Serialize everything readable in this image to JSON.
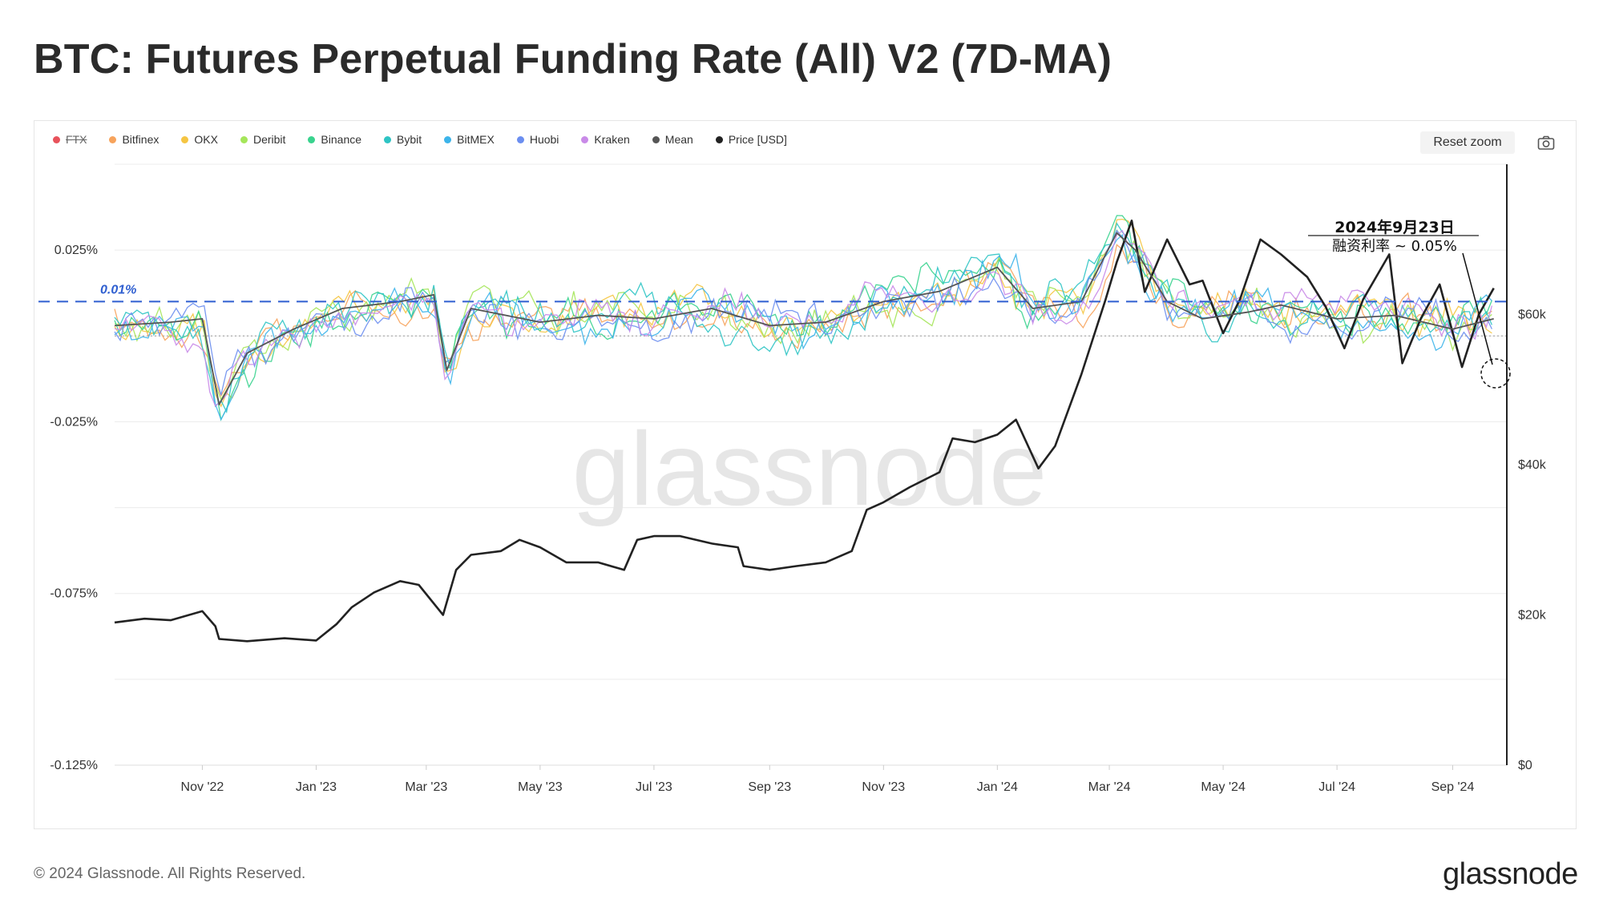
{
  "title": "BTC: Futures Perpetual Funding Rate (All) V2 (7D-MA)",
  "legend": [
    {
      "label": "FTX",
      "color": "#e8525b",
      "struck": true
    },
    {
      "label": "Bitfinex",
      "color": "#f7a35c",
      "struck": false
    },
    {
      "label": "OKX",
      "color": "#f5c542",
      "struck": false
    },
    {
      "label": "Deribit",
      "color": "#a5e65a",
      "struck": false
    },
    {
      "label": "Binance",
      "color": "#39d38e",
      "struck": false
    },
    {
      "label": "Bybit",
      "color": "#2ec4c4",
      "struck": false
    },
    {
      "label": "BitMEX",
      "color": "#3cb4ea",
      "struck": false
    },
    {
      "label": "Huobi",
      "color": "#6b8ef0",
      "struck": false
    },
    {
      "label": "Kraken",
      "color": "#c98ae8",
      "struck": false
    },
    {
      "label": "Mean",
      "color": "#555555",
      "struck": false
    },
    {
      "label": "Price [USD]",
      "color": "#222222",
      "struck": false
    }
  ],
  "toolbar": {
    "reset_zoom": "Reset zoom",
    "camera_icon": "camera-icon"
  },
  "watermark": "glassnode",
  "annotation": {
    "threshold_label": "0.01%",
    "date_label": "2024年9月23日",
    "rate_label": "融资利率 ~ 0.05%"
  },
  "footer": {
    "copyright": "© 2024 Glassnode. All Rights Reserved.",
    "brand": "glassnode"
  },
  "chart_data": {
    "type": "line",
    "x_ticks": [
      "Nov '22",
      "Jan '23",
      "Mar '23",
      "May '23",
      "Jul '23",
      "Sep '23",
      "Nov '23",
      "Jan '24",
      "Mar '24",
      "May '24",
      "Jul '24",
      "Sep '24"
    ],
    "y_left_ticks": [
      "0.025%",
      "-0.025%",
      "-0.075%",
      "-0.125%"
    ],
    "y_left_values": [
      0.025,
      -0.025,
      -0.075,
      -0.125
    ],
    "y_left_range": [
      -0.125,
      0.05
    ],
    "y_right_ticks": [
      "$60k",
      "$40k",
      "$20k",
      "$0"
    ],
    "y_right_values": [
      60000,
      40000,
      20000,
      0
    ],
    "y_right_range": [
      0,
      80000
    ],
    "threshold": 0.01,
    "grid": true,
    "legend_position": "top-left",
    "series": [
      {
        "name": "Price [USD]",
        "axis": "right",
        "x": [
          "2022-09-15",
          "2022-10-01",
          "2022-10-15",
          "2022-11-01",
          "2022-11-08",
          "2022-11-10",
          "2022-11-25",
          "2022-12-15",
          "2023-01-01",
          "2023-01-12",
          "2023-01-20",
          "2023-02-01",
          "2023-02-15",
          "2023-02-25",
          "2023-03-10",
          "2023-03-17",
          "2023-03-25",
          "2023-04-10",
          "2023-04-20",
          "2023-05-01",
          "2023-05-15",
          "2023-06-01",
          "2023-06-15",
          "2023-06-22",
          "2023-07-01",
          "2023-07-15",
          "2023-08-01",
          "2023-08-15",
          "2023-08-18",
          "2023-09-01",
          "2023-09-15",
          "2023-10-01",
          "2023-10-15",
          "2023-10-23",
          "2023-11-01",
          "2023-11-15",
          "2023-12-01",
          "2023-12-08",
          "2023-12-20",
          "2024-01-01",
          "2024-01-11",
          "2024-01-23",
          "2024-02-01",
          "2024-02-15",
          "2024-02-28",
          "2024-03-05",
          "2024-03-13",
          "2024-03-20",
          "2024-04-01",
          "2024-04-13",
          "2024-04-20",
          "2024-05-01",
          "2024-05-10",
          "2024-05-21",
          "2024-06-01",
          "2024-06-15",
          "2024-06-25",
          "2024-07-05",
          "2024-07-15",
          "2024-07-29",
          "2024-08-05",
          "2024-08-15",
          "2024-08-25",
          "2024-09-06",
          "2024-09-15",
          "2024-09-23"
        ],
        "values": [
          19000,
          19500,
          19300,
          20500,
          18500,
          16800,
          16500,
          16900,
          16600,
          18800,
          21000,
          23000,
          24500,
          24000,
          20000,
          26000,
          28000,
          28500,
          30000,
          29000,
          27000,
          27000,
          26000,
          30000,
          30500,
          30500,
          29500,
          29000,
          26500,
          26000,
          26500,
          27000,
          28500,
          34000,
          35000,
          37000,
          39000,
          43500,
          43000,
          44000,
          46000,
          39500,
          42500,
          52000,
          62000,
          67000,
          72500,
          63000,
          70000,
          64000,
          64500,
          57500,
          62000,
          70000,
          68000,
          65000,
          61000,
          55500,
          62000,
          68000,
          53500,
          59500,
          64000,
          53000,
          60000,
          63500
        ]
      },
      {
        "name": "Mean",
        "axis": "left",
        "x": [
          "2022-09-15",
          "2022-10-15",
          "2022-11-01",
          "2022-11-10",
          "2022-11-25",
          "2022-12-20",
          "2023-01-15",
          "2023-02-15",
          "2023-03-05",
          "2023-03-12",
          "2023-03-25",
          "2023-05-01",
          "2023-06-01",
          "2023-07-01",
          "2023-08-01",
          "2023-09-01",
          "2023-10-01",
          "2023-11-01",
          "2023-12-01",
          "2024-01-01",
          "2024-01-20",
          "2024-02-15",
          "2024-03-05",
          "2024-03-15",
          "2024-04-01",
          "2024-04-20",
          "2024-05-15",
          "2024-06-01",
          "2024-07-01",
          "2024-08-01",
          "2024-09-01",
          "2024-09-23"
        ],
        "values": [
          0.003,
          0.004,
          0.005,
          -0.02,
          -0.005,
          0.002,
          0.008,
          0.01,
          0.012,
          -0.01,
          0.008,
          0.004,
          0.006,
          0.005,
          0.008,
          0.003,
          0.004,
          0.01,
          0.013,
          0.02,
          0.008,
          0.01,
          0.03,
          0.025,
          0.01,
          0.005,
          0.007,
          0.009,
          0.005,
          0.006,
          0.002,
          0.005
        ]
      }
    ]
  }
}
